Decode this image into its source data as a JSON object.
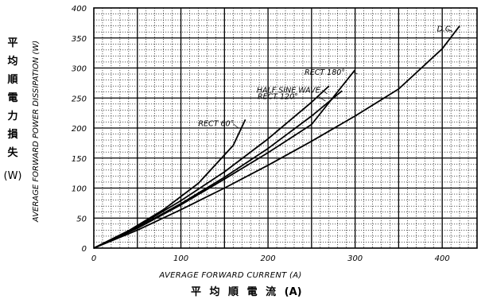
{
  "chart_data": {
    "type": "line",
    "title": "",
    "xlabel": "AVERAGE FORWARD CURRENT (A)",
    "xlabel_jp": "平 均 順 電 流 (A)",
    "ylabel": "AVERAGE FORWARD POWER DISSIPATION (W)",
    "ylabel_jp": [
      "平",
      "均",
      "順",
      "電",
      "力",
      "損",
      "失"
    ],
    "ylabel_jp_unit": "(W)",
    "xlim": [
      0,
      440
    ],
    "ylim": [
      0,
      400
    ],
    "x_ticks": [
      0,
      100,
      200,
      300,
      400
    ],
    "y_ticks": [
      0,
      50,
      100,
      150,
      200,
      250,
      300,
      350,
      400
    ],
    "x_tick_labels": [
      "0",
      "100",
      "200",
      "300",
      "400"
    ],
    "y_tick_labels": [
      "0",
      "50",
      "100",
      "150",
      "200",
      "250",
      "300",
      "350",
      "400"
    ],
    "grid": true,
    "minor_grid": true,
    "legend": "none",
    "series": [
      {
        "name": "RECT 60°",
        "x": [
          0,
          40,
          80,
          120,
          160,
          174
        ],
        "y": [
          0,
          29,
          64,
          108,
          171,
          214
        ]
      },
      {
        "name": "HALF SINE WAVE",
        "x": [
          0,
          50,
          100,
          150,
          200,
          250,
          270
        ],
        "y": [
          0,
          36,
          79,
          127,
          182,
          243,
          270
        ]
      },
      {
        "name": "RECT 120°",
        "x": [
          0,
          50,
          100,
          150,
          200,
          250,
          285
        ],
        "y": [
          0,
          34,
          74,
          118,
          166,
          220,
          262
        ]
      },
      {
        "name": "RECT 180°",
        "x": [
          0,
          50,
          100,
          150,
          200,
          250,
          300
        ],
        "y": [
          0,
          33,
          72,
          115,
          159,
          206,
          297
        ]
      },
      {
        "name": "D.C.",
        "x": [
          0,
          50,
          100,
          150,
          200,
          250,
          300,
          350,
          400,
          420
        ],
        "y": [
          0,
          30,
          64,
          100,
          138,
          178,
          220,
          265,
          332,
          370
        ]
      }
    ],
    "annotations": [
      {
        "text": "RECT 60°",
        "series": 0
      },
      {
        "text": "HALF SINE WAVE",
        "series": 1
      },
      {
        "text": "RECT 120°",
        "series": 2
      },
      {
        "text": "RECT 180°",
        "series": 3
      },
      {
        "text": "D.C.",
        "series": 4
      }
    ]
  }
}
